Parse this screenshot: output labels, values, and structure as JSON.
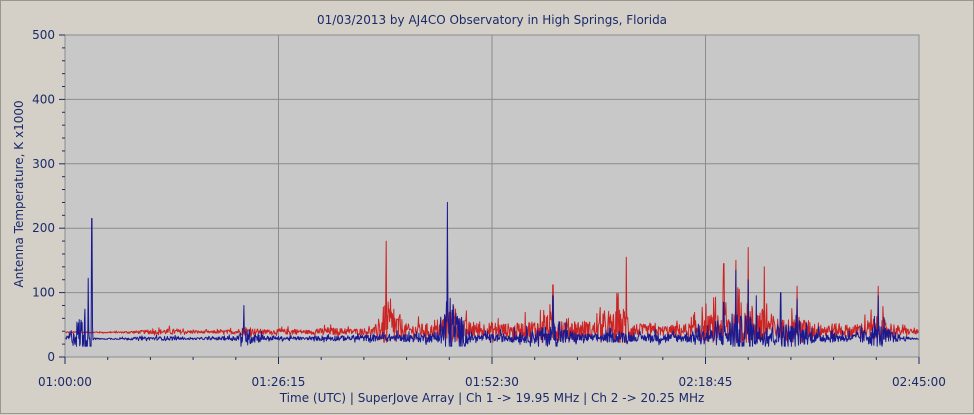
{
  "chart_data": {
    "type": "line",
    "title": "01/03/2013  by  AJ4CO Observatory  in  High Springs, Florida",
    "xlabel": "Time (UTC)   |   SuperJove Array   |   Ch 1 -> 19.95 MHz   |   Ch 2 -> 20.25 MHz",
    "ylabel": "Antenna Temperature, K x1000",
    "x_ticks": [
      "01:00:00",
      "01:26:15",
      "01:52:30",
      "02:18:45",
      "02:45:00"
    ],
    "x_range_minutes": [
      0,
      105
    ],
    "y_ticks": [
      0,
      100,
      200,
      300,
      400,
      500
    ],
    "ylim": [
      0,
      500
    ],
    "grid": true,
    "background_color": "#c8c8c8",
    "series": [
      {
        "color": "#cc2222",
        "baseline": 38,
        "x_min": [
          0,
          3.5,
          5,
          8,
          11,
          13,
          15,
          18,
          21,
          22,
          25,
          28,
          30,
          32,
          35,
          38,
          39.5,
          42,
          44.5,
          46,
          47,
          50,
          53,
          55,
          57,
          60,
          63,
          65,
          69,
          70,
          71,
          73,
          75,
          77,
          81,
          82.5,
          84,
          86,
          88,
          90,
          92,
          94,
          97,
          100,
          103,
          105
        ],
        "values": [
          40,
          42,
          38,
          45,
          50,
          55,
          48,
          45,
          52,
          60,
          50,
          55,
          48,
          60,
          55,
          58,
          180,
          75,
          78,
          70,
          140,
          80,
          85,
          75,
          90,
          112,
          95,
          85,
          155,
          80,
          75,
          65,
          72,
          80,
          145,
          150,
          170,
          140,
          95,
          110,
          85,
          80,
          70,
          110,
          60,
          50
        ]
      },
      {
        "color": "#1a1a90",
        "baseline": 28,
        "x_min": [
          0,
          3.3,
          3.5,
          5,
          8,
          11,
          13,
          15,
          18,
          21,
          22,
          25,
          28,
          30,
          32,
          35,
          38,
          42,
          44.5,
          46,
          47,
          50,
          53,
          55,
          57,
          60,
          63,
          65,
          69,
          70,
          73,
          75,
          77,
          81,
          82.5,
          84,
          85,
          86,
          88,
          90,
          92,
          94,
          97,
          100,
          103,
          105
        ],
        "values": [
          28,
          215,
          30,
          28,
          35,
          38,
          40,
          32,
          35,
          42,
          80,
          40,
          38,
          35,
          45,
          42,
          48,
          50,
          55,
          52,
          240,
          45,
          50,
          55,
          60,
          95,
          55,
          50,
          60,
          45,
          55,
          50,
          60,
          85,
          135,
          120,
          95,
          70,
          100,
          90,
          60,
          55,
          50,
          95,
          40,
          30
        ]
      }
    ]
  }
}
